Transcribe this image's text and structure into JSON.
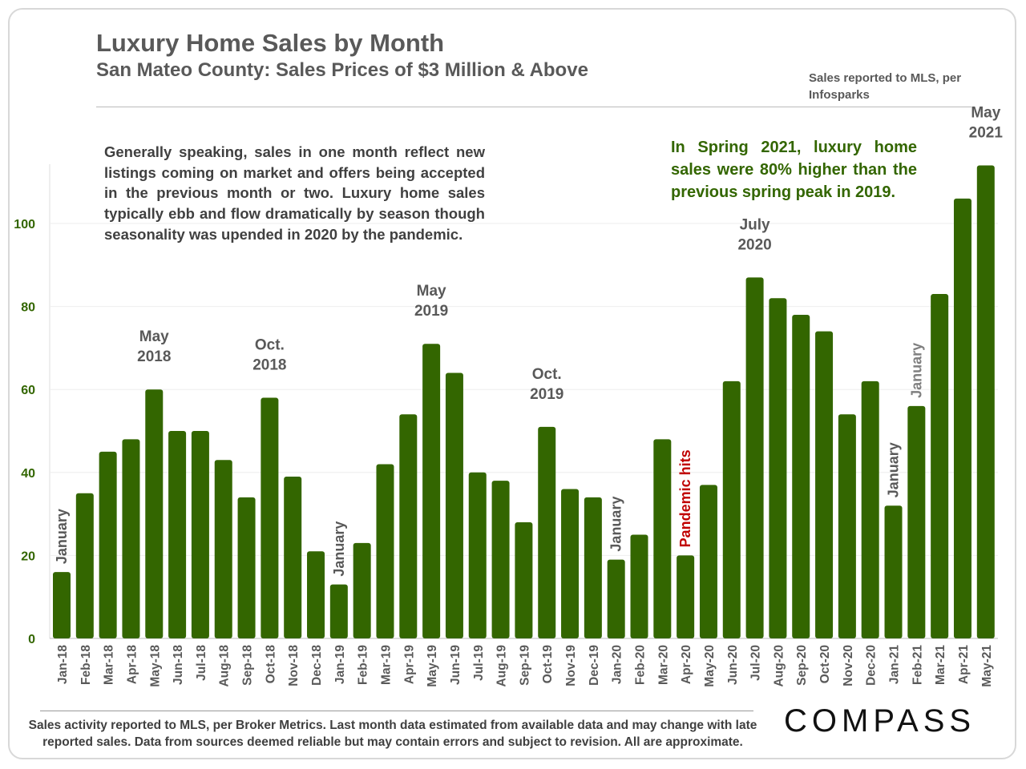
{
  "header": {
    "title": "Luxury Home Sales by Month",
    "subtitle": "San Mateo County: Sales Prices of $3 Million & Above",
    "source": "Sales reported to MLS, per Infosparks"
  },
  "notes": {
    "left": "Generally speaking, sales in one month reflect new listings coming on market and offers being accepted in the previous month or two.  Luxury home sales typically ebb and flow dramatically by season though seasonality was upended in 2020 by the pandemic.",
    "right": "In Spring 2021, luxury home sales were 80% higher than the previous spring peak in 2019."
  },
  "footer": {
    "text": "Sales activity reported to MLS, per Broker Metrics. Last month data estimated from available data and may change with late reported sales. Data from sources deemed reliable but may contain errors and subject to revision. All are approximate.",
    "logo": "COMPASS"
  },
  "chart_data": {
    "type": "bar",
    "categories": [
      "Jan-18",
      "Feb-18",
      "Mar-18",
      "Apr-18",
      "May-18",
      "Jun-18",
      "Jul-18",
      "Aug-18",
      "Sep-18",
      "Oct-18",
      "Nov-18",
      "Dec-18",
      "Jan-19",
      "Feb-19",
      "Mar-19",
      "Apr-19",
      "May-19",
      "Jun-19",
      "Jul-19",
      "Aug-19",
      "Sep-19",
      "Oct-19",
      "Nov-19",
      "Dec-19",
      "Jan-20",
      "Feb-20",
      "Mar-20",
      "Apr-20",
      "May-20",
      "Jun-20",
      "Jul-20",
      "Aug-20",
      "Sep-20",
      "Oct-20",
      "Nov-20",
      "Dec-20",
      "Jan-21",
      "Feb-21",
      "Mar-21",
      "Apr-21",
      "May-21"
    ],
    "values": [
      16,
      35,
      45,
      48,
      60,
      50,
      50,
      43,
      34,
      58,
      39,
      21,
      13,
      23,
      42,
      54,
      71,
      64,
      40,
      38,
      28,
      51,
      36,
      34,
      19,
      25,
      48,
      20,
      37,
      62,
      87,
      82,
      78,
      74,
      54,
      62,
      32,
      56,
      83,
      106,
      114
    ],
    "ylim": [
      0,
      120
    ],
    "yticks": [
      0,
      20,
      40,
      60,
      80,
      100
    ],
    "grid": true,
    "bar_color": "#336600",
    "annotations": [
      {
        "category": "May-18",
        "lines": [
          "May",
          "2018"
        ]
      },
      {
        "category": "Oct-18",
        "lines": [
          "Oct.",
          "2018"
        ]
      },
      {
        "category": "May-19",
        "lines": [
          "May",
          "2019"
        ]
      },
      {
        "category": "Oct-19",
        "lines": [
          "Oct.",
          "2019"
        ]
      },
      {
        "category": "Jul-20",
        "lines": [
          "July",
          "2020"
        ]
      },
      {
        "category": "May-21",
        "lines": [
          "May",
          "2021"
        ]
      }
    ],
    "vertical_annotations": [
      {
        "category": "Jan-18",
        "text": "January",
        "color": "#595959"
      },
      {
        "category": "Jan-19",
        "text": "January",
        "color": "#595959"
      },
      {
        "category": "Jan-20",
        "text": "January",
        "color": "#595959"
      },
      {
        "category": "Apr-20",
        "text": "Pandemic hits",
        "color": "#c00000"
      },
      {
        "category": "Jan-21",
        "text": "January",
        "color": "#595959"
      },
      {
        "category": "Feb-21",
        "text": "January",
        "color": "#7f7f7f"
      }
    ]
  }
}
